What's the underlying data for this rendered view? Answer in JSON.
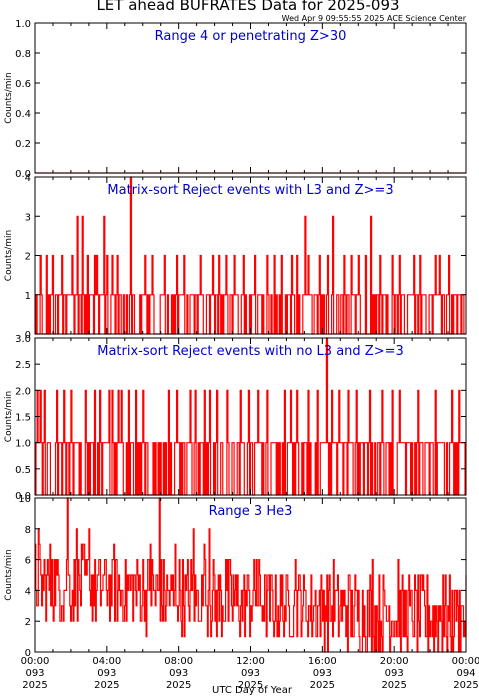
{
  "header": {
    "title": "LET ahead BUFRATES Data for 2025-093",
    "timestamp": "Wed Apr  9 09:55:55 2025 ACE Science Center"
  },
  "colors": {
    "data": "#ff0000",
    "panel_title": "#0000cc",
    "axes": "#000000"
  },
  "x_axis": {
    "label": "UTC Day of Year",
    "ticks": [
      {
        "time": "00:00",
        "doy": "093",
        "year": "2025"
      },
      {
        "time": "04:00",
        "doy": "093",
        "year": "2025"
      },
      {
        "time": "08:00",
        "doy": "093",
        "year": "2025"
      },
      {
        "time": "12:00",
        "doy": "093",
        "year": "2025"
      },
      {
        "time": "16:00",
        "doy": "093",
        "year": "2025"
      },
      {
        "time": "20:00",
        "doy": "093",
        "year": "2025"
      },
      {
        "time": "00:00",
        "doy": "094",
        "year": "2025"
      }
    ]
  },
  "chart_data": [
    {
      "type": "line",
      "title": "Range 4 or  penetrating Z>30",
      "ylabel": "Counts/min",
      "ylim": [
        0,
        1.0
      ],
      "y_ticks": [
        "0.0",
        "0.2",
        "0.4",
        "0.6",
        "0.8",
        "1.0"
      ],
      "x_unit": "hours of day 093",
      "xlim": [
        0,
        24
      ],
      "series": [
        {
          "values_note_free": true,
          "points": [
            [
              0,
              0
            ],
            [
              24,
              0
            ]
          ]
        }
      ]
    },
    {
      "type": "line",
      "title": "Matrix-sort Reject events with L3 and Z>=3",
      "ylabel": "Counts/min",
      "ylim": [
        0,
        4
      ],
      "y_ticks": [
        "0",
        "1",
        "2",
        "3",
        "4"
      ],
      "xlim": [
        0,
        24
      ],
      "spikes": [
        [
          2.35,
          3
        ],
        [
          2.65,
          3
        ],
        [
          5.3,
          4
        ],
        [
          15.0,
          3
        ],
        [
          16.55,
          3
        ],
        [
          18.7,
          3
        ],
        [
          3.85,
          3
        ]
      ],
      "twos": [
        0.3,
        0.6,
        0.95,
        1.5,
        2.05,
        2.9,
        3.3,
        3.4,
        4.0,
        4.3,
        4.55,
        6.1,
        6.5,
        7.2,
        7.9,
        8.3,
        9.2,
        9.9,
        10.2,
        10.6,
        11.1,
        11.6,
        12.2,
        12.9,
        13.3,
        13.7,
        14.3,
        14.6,
        15.2,
        15.8,
        16.3,
        17.2,
        17.6,
        18.0,
        18.4,
        19.2,
        19.9,
        20.3,
        21.1,
        21.4,
        22.3,
        22.5,
        23.0
      ]
    },
    {
      "type": "line",
      "title": "Matrix-sort Reject events with no L3 and Z>=3",
      "ylabel": "Counts/min",
      "ylim": [
        0,
        3.0
      ],
      "y_ticks": [
        "0.0",
        "0.5",
        "1.0",
        "1.5",
        "2.0",
        "2.5",
        "3.0"
      ],
      "xlim": [
        0,
        24
      ],
      "spikes": [
        [
          16.2,
          3
        ]
      ],
      "twos": [
        0.1,
        0.3,
        0.5,
        1.2,
        1.6,
        2.0,
        2.8,
        3.3,
        3.6,
        4.1,
        4.3,
        4.6,
        4.8,
        5.2,
        5.6,
        6.0,
        7.4,
        7.9,
        8.6,
        8.9,
        9.4,
        9.7,
        10.1,
        10.7,
        11.4,
        11.9,
        12.4,
        12.9,
        13.9,
        14.2,
        14.6,
        15.2,
        15.7,
        16.5,
        16.9,
        17.4,
        17.9,
        18.6,
        19.3,
        19.9,
        20.3,
        21.3,
        22.3,
        23.2,
        23.6
      ]
    },
    {
      "type": "line",
      "title": "Range 3 He3",
      "ylabel": "Counts/min",
      "ylim": [
        0,
        10
      ],
      "y_ticks": [
        "0",
        "2",
        "4",
        "6",
        "8",
        "10"
      ],
      "xlim": [
        0,
        24
      ],
      "peaks": [
        [
          0.2,
          8
        ],
        [
          0.9,
          6
        ],
        [
          1.8,
          10
        ],
        [
          2.3,
          8
        ],
        [
          3.0,
          8
        ],
        [
          4.4,
          7
        ],
        [
          6.4,
          7
        ],
        [
          6.9,
          10
        ],
        [
          7.8,
          7
        ],
        [
          8.8,
          8
        ],
        [
          9.4,
          7
        ],
        [
          9.7,
          8
        ],
        [
          10.6,
          6
        ],
        [
          12.3,
          6
        ],
        [
          14.5,
          6
        ],
        [
          16.6,
          6
        ],
        [
          18.8,
          6
        ],
        [
          20.2,
          6
        ],
        [
          22.7,
          5
        ],
        [
          23.4,
          4
        ],
        [
          23.7,
          3
        ]
      ]
    }
  ]
}
